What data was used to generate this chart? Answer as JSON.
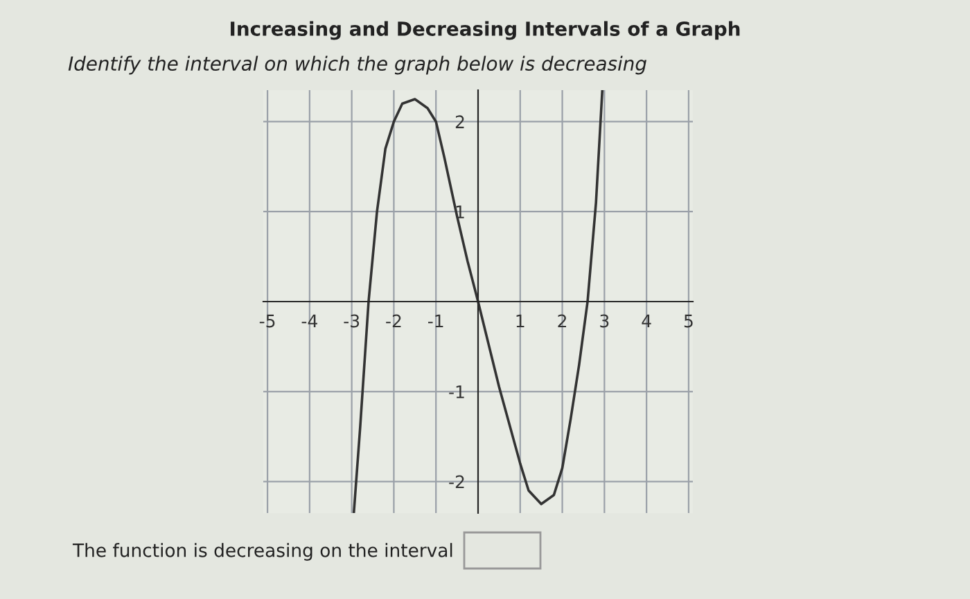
{
  "chart_data": {
    "type": "line",
    "title": "Increasing and Decreasing Intervals of a Graph",
    "subtitle": "Identify the interval on which the graph below is decreasing",
    "annotations": [
      "The function is decreasing on the interval"
    ],
    "series": [
      {
        "color": "#333333",
        "x": [
          -2.95,
          -2.8,
          -2.6,
          -2.4,
          -2.2,
          -2.0,
          -1.8,
          -1.5,
          -1.2,
          -1.0,
          -0.8,
          -0.5,
          -0.25,
          0,
          0.5,
          1.0,
          1.2,
          1.5,
          1.8,
          2.0,
          2.2,
          2.4,
          2.6,
          2.8,
          2.95
        ],
        "values": [
          -2.35,
          -1.4,
          0,
          1.0,
          1.7,
          2.0,
          2.2,
          2.25,
          2.15,
          2.0,
          1.6,
          0.95,
          0.45,
          0,
          -0.95,
          -1.8,
          -2.1,
          -2.25,
          -2.15,
          -1.85,
          -1.3,
          -0.7,
          0,
          1.1,
          2.35
        ]
      }
    ],
    "xlim": [
      -5.1,
      5.1
    ],
    "ylim": [
      -2.35,
      2.35
    ],
    "xticks": [
      -5,
      -4,
      -3,
      -2,
      -1,
      1,
      2,
      3,
      4,
      5
    ],
    "yticks": [
      -2,
      -1,
      1,
      2
    ],
    "grid": true,
    "marker": "none",
    "line_style": "solid"
  }
}
